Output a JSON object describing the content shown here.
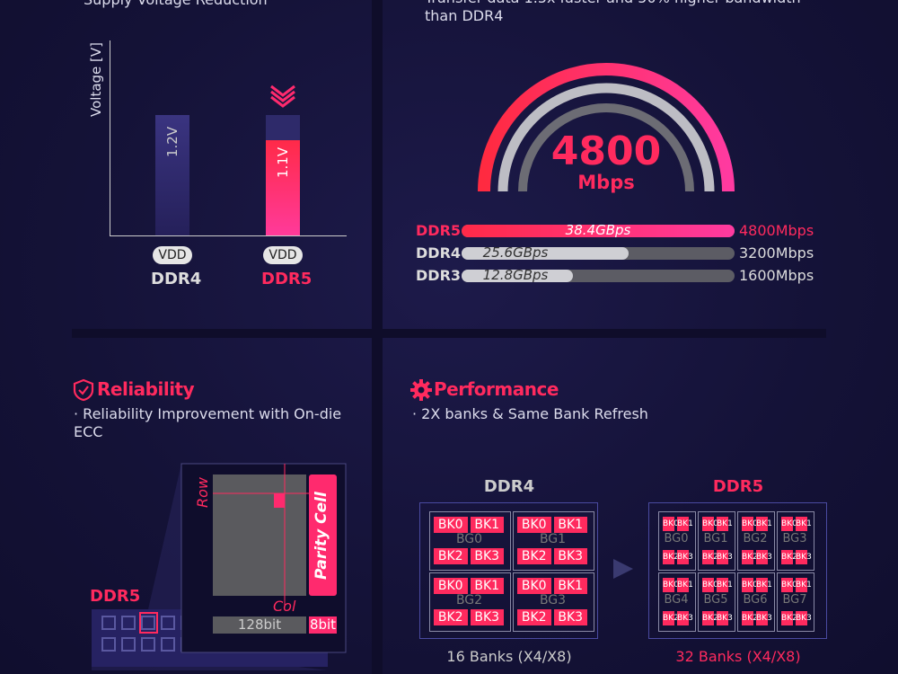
{
  "voltage": {
    "subtitle": "Supply Voltage Reduction",
    "axis_label": "Voltage [V]",
    "bars": [
      {
        "label": "1.2V",
        "tag": "VDD",
        "name": "DDR4"
      },
      {
        "label": "1.1V",
        "tag": "VDD",
        "name": "DDR5"
      }
    ]
  },
  "speed": {
    "subtitle": "Transfer data 1.5x faster and 50% higher bandwidth than DDR4",
    "gauge_value": "4800",
    "gauge_unit": "Mbps",
    "rows": [
      {
        "name": "DDR5",
        "bandwidth": "38.4GBps",
        "rate": "4800Mbps"
      },
      {
        "name": "DDR4",
        "bandwidth": "25.6GBps",
        "rate": "3200Mbps"
      },
      {
        "name": "DDR3",
        "bandwidth": "12.8GBps",
        "rate": "1600Mbps"
      }
    ]
  },
  "reliability": {
    "title": "Reliability",
    "bullet": "· Reliability Improvement with On-die ECC",
    "module_label": "DDR5",
    "row_label": "Row",
    "col_label": "Col",
    "parity_label": "Parity Cell",
    "data_bits": "128bit",
    "parity_bits": "8bit"
  },
  "performance": {
    "title": "Performance",
    "bullet": "· 2X banks & Same Bank Refresh",
    "ddr4": {
      "name": "DDR4",
      "caption": "16 Banks (X4/X8)",
      "groups": [
        {
          "label": "BG0",
          "banks": [
            "BK0",
            "BK1",
            "BK2",
            "BK3"
          ]
        },
        {
          "label": "BG1",
          "banks": [
            "BK0",
            "BK1",
            "BK2",
            "BK3"
          ]
        },
        {
          "label": "BG2",
          "banks": [
            "BK0",
            "BK1",
            "BK2",
            "BK3"
          ]
        },
        {
          "label": "BG3",
          "banks": [
            "BK0",
            "BK1",
            "BK2",
            "BK3"
          ]
        }
      ]
    },
    "ddr5": {
      "name": "DDR5",
      "caption": "32 Banks (X4/X8)",
      "groups": [
        {
          "label": "BG0",
          "banks": [
            "BK0",
            "BK1",
            "BK2",
            "BK3"
          ]
        },
        {
          "label": "BG1",
          "banks": [
            "BK0",
            "BK1",
            "BK2",
            "BK3"
          ]
        },
        {
          "label": "BG2",
          "banks": [
            "BK0",
            "BK1",
            "BK2",
            "BK3"
          ]
        },
        {
          "label": "BG3",
          "banks": [
            "BK0",
            "BK1",
            "BK2",
            "BK3"
          ]
        },
        {
          "label": "BG4",
          "banks": [
            "BK0",
            "BK1",
            "BK2",
            "BK3"
          ]
        },
        {
          "label": "BG5",
          "banks": [
            "BK0",
            "BK1",
            "BK2",
            "BK3"
          ]
        },
        {
          "label": "BG6",
          "banks": [
            "BK0",
            "BK1",
            "BK2",
            "BK3"
          ]
        },
        {
          "label": "BG7",
          "banks": [
            "BK0",
            "BK1",
            "BK2",
            "BK3"
          ]
        }
      ]
    }
  }
}
